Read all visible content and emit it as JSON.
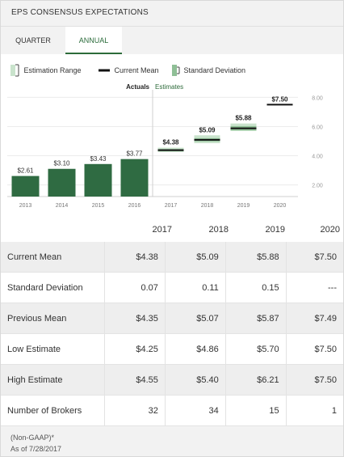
{
  "header": {
    "title": "EPS CONSENSUS EXPECTATIONS"
  },
  "tabs": [
    {
      "label": "QUARTER",
      "active": false
    },
    {
      "label": "ANNUAL",
      "active": true
    }
  ],
  "legend": {
    "range": "Estimation Range",
    "mean": "Current Mean",
    "stdev": "Standard Deviation"
  },
  "colors": {
    "accent": "#2d6b3a",
    "bar": "#2f6b42",
    "estimate_range": "#c9e3cc",
    "mean": "#111111",
    "stdev": "#8fbf96"
  },
  "chart_data": {
    "type": "bar",
    "section_labels": {
      "actuals": "Actuals",
      "estimates": "Estimates"
    },
    "categories": [
      "2013",
      "2014",
      "2015",
      "2016",
      "2017",
      "2018",
      "2019",
      "2020"
    ],
    "actuals": [
      {
        "year": "2013",
        "value": 2.61,
        "label": "$2.61"
      },
      {
        "year": "2014",
        "value": 3.1,
        "label": "$3.10"
      },
      {
        "year": "2015",
        "value": 3.43,
        "label": "$3.43"
      },
      {
        "year": "2016",
        "value": 3.77,
        "label": "$3.77"
      }
    ],
    "estimates": [
      {
        "year": "2017",
        "mean": 4.38,
        "label": "$4.38",
        "low": 4.25,
        "high": 4.55,
        "stdev": 0.07
      },
      {
        "year": "2018",
        "mean": 5.09,
        "label": "$5.09",
        "low": 4.86,
        "high": 5.4,
        "stdev": 0.11
      },
      {
        "year": "2019",
        "mean": 5.88,
        "label": "$5.88",
        "low": 5.7,
        "high": 6.21,
        "stdev": 0.15
      },
      {
        "year": "2020",
        "mean": 7.5,
        "label": "$7.50",
        "low": 7.5,
        "high": 7.5,
        "stdev": 0
      }
    ],
    "yticks": [
      "2.00",
      "4.00",
      "6.00",
      "8.00"
    ],
    "ylim": [
      1.2,
      8.3
    ]
  },
  "table": {
    "years": [
      "2017",
      "2018",
      "2019",
      "2020"
    ],
    "rows": [
      {
        "label": "Current Mean",
        "values": [
          "$4.38",
          "$5.09",
          "$5.88",
          "$7.50"
        ]
      },
      {
        "label": "Standard Deviation",
        "values": [
          "0.07",
          "0.11",
          "0.15",
          "---"
        ]
      },
      {
        "label": "Previous Mean",
        "values": [
          "$4.35",
          "$5.07",
          "$5.87",
          "$7.49"
        ]
      },
      {
        "label": "Low Estimate",
        "values": [
          "$4.25",
          "$4.86",
          "$5.70",
          "$7.50"
        ]
      },
      {
        "label": "High Estimate",
        "values": [
          "$4.55",
          "$5.40",
          "$6.21",
          "$7.50"
        ]
      },
      {
        "label": "Number of Brokers",
        "values": [
          "32",
          "34",
          "15",
          "1"
        ]
      }
    ]
  },
  "footer": {
    "note": "(Non-GAAP)*",
    "as_of": "As of 7/28/2017"
  }
}
